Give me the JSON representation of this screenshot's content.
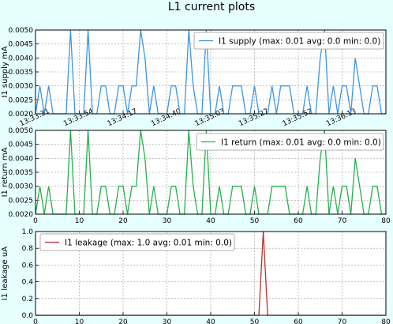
{
  "figure_title": "L1 current plots",
  "colors": {
    "background": "#e6ffff",
    "supply": "#3a96e6",
    "return": "#22b24c",
    "leakage": "#c0302a",
    "grid": "#9a9a9a"
  },
  "chart_data": [
    {
      "type": "line",
      "ylabel": "I1 supply mA",
      "legend_label": "I1 supply (max: 0.01 avg: 0.0 min: 0.0)",
      "legend_position": "upper-right",
      "xlim": [
        0,
        80
      ],
      "ylim": [
        0.002,
        0.005
      ],
      "yticks": [
        0.002,
        0.0025,
        0.003,
        0.0035,
        0.004,
        0.0045,
        0.005
      ],
      "ytick_labels": [
        "0.0020",
        "0.0025",
        "0.0030",
        "0.0035",
        "0.0040",
        "0.0045",
        "0.0050"
      ],
      "xticks": [
        0,
        10,
        20,
        30,
        40,
        50,
        60,
        70,
        80
      ],
      "xtick_labels": [
        "13:33:31",
        "13:33:54",
        "13:34:17",
        "13:34:40",
        "13:35:03",
        "13:35:27",
        "13:35:52",
        "13:36:13",
        ""
      ],
      "grid": true,
      "series": [
        {
          "name": "I1 supply",
          "values": [
            0.002,
            0.003,
            0.002,
            0.003,
            0.002,
            0.002,
            0.002,
            0.002,
            0.005,
            0.002,
            0.002,
            0.002,
            0.005,
            0.002,
            0.002,
            0.003,
            0.003,
            0.002,
            0.002,
            0.003,
            0.003,
            0.002,
            0.003,
            0.003,
            0.005,
            0.004,
            0.002,
            0.003,
            0.002,
            0.002,
            0.002,
            0.003,
            0.003,
            0.002,
            0.002,
            0.005,
            0.003,
            0.002,
            0.002,
            0.005,
            0.002,
            0.002,
            0.003,
            0.002,
            0.002,
            0.003,
            0.003,
            0.003,
            0.002,
            0.002,
            0.003,
            0.002,
            0.002,
            0.002,
            0.003,
            0.002,
            0.003,
            0.003,
            0.003,
            0.002,
            0.002,
            0.002,
            0.003,
            0.002,
            0.002,
            0.004,
            0.005,
            0.002,
            0.003,
            0.002,
            0.003,
            0.003,
            0.002,
            0.004,
            0.003,
            0.002,
            0.002,
            0.003,
            0.003,
            0.002,
            0.002
          ]
        }
      ]
    },
    {
      "type": "line",
      "ylabel": "I1 return mA",
      "legend_label": "I1 return (max: 0.01 avg: 0.0 min: 0.0)",
      "legend_position": "upper-right",
      "xlim": [
        0,
        80
      ],
      "ylim": [
        0.002,
        0.005
      ],
      "yticks": [
        0.002,
        0.0025,
        0.003,
        0.0035,
        0.004,
        0.0045,
        0.005
      ],
      "ytick_labels": [
        "0.0020",
        "0.0025",
        "0.0030",
        "0.0035",
        "0.0040",
        "0.0045",
        "0.0050"
      ],
      "xticks": [
        0,
        10,
        20,
        30,
        40,
        50,
        60,
        70,
        80
      ],
      "xtick_labels": [
        "0",
        "10",
        "20",
        "30",
        "40",
        "50",
        "60",
        "70",
        "80"
      ],
      "grid": true,
      "series": [
        {
          "name": "I1 return",
          "values": [
            0.002,
            0.003,
            0.002,
            0.003,
            0.002,
            0.002,
            0.002,
            0.002,
            0.005,
            0.002,
            0.002,
            0.002,
            0.005,
            0.002,
            0.002,
            0.003,
            0.003,
            0.002,
            0.002,
            0.003,
            0.003,
            0.002,
            0.003,
            0.003,
            0.005,
            0.004,
            0.002,
            0.003,
            0.002,
            0.002,
            0.002,
            0.003,
            0.003,
            0.002,
            0.002,
            0.005,
            0.003,
            0.002,
            0.002,
            0.005,
            0.002,
            0.002,
            0.003,
            0.002,
            0.002,
            0.003,
            0.003,
            0.003,
            0.002,
            0.002,
            0.003,
            0.002,
            0.002,
            0.002,
            0.003,
            0.003,
            0.003,
            0.003,
            0.002,
            0.002,
            0.002,
            0.002,
            0.003,
            0.002,
            0.002,
            0.004,
            0.005,
            0.002,
            0.003,
            0.002,
            0.003,
            0.003,
            0.002,
            0.004,
            0.003,
            0.002,
            0.002,
            0.003,
            0.003,
            0.002,
            0.002
          ]
        }
      ]
    },
    {
      "type": "line",
      "ylabel": "I1 leakage uA",
      "legend_label": "I1 leakage (max: 1.0 avg: 0.01 min: 0.0)",
      "legend_position": "upper-left",
      "xlim": [
        0,
        80
      ],
      "ylim": [
        0,
        1.0
      ],
      "yticks": [
        0,
        0.2,
        0.4,
        0.6,
        0.8,
        1.0
      ],
      "ytick_labels": [
        "0.0",
        "0.2",
        "0.4",
        "0.6",
        "0.8",
        "1.0"
      ],
      "xticks": [
        0,
        10,
        20,
        30,
        40,
        50,
        60,
        70,
        80
      ],
      "xtick_labels": [
        "0",
        "10",
        "20",
        "30",
        "40",
        "50",
        "60",
        "70",
        "80"
      ],
      "grid": true,
      "series": [
        {
          "name": "I1 leakage",
          "x": [
            0,
            51,
            52,
            53,
            80
          ],
          "values": [
            0,
            0,
            1.0,
            0,
            0
          ]
        }
      ]
    }
  ]
}
